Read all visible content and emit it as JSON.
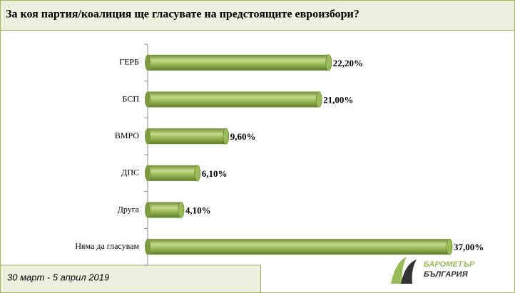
{
  "chart_data": {
    "type": "bar",
    "orientation": "horizontal",
    "title": "За коя партия/коалиция ще гласувате на предстоящите евроизбори?",
    "categories": [
      "ГЕРБ",
      "БСП",
      "ВМРО",
      "ДПС",
      "Друга",
      "Няма да гласувам"
    ],
    "values": [
      22.2,
      21,
      9.6,
      6.1,
      4.1,
      37
    ],
    "value_labels": [
      "22,20%",
      "21,00%",
      "9,60%",
      "6,10%",
      "4,10%",
      "37,00%"
    ],
    "color": "#9bbb59",
    "footnote": "30 март - 5 април 2019",
    "logo": [
      "БАРОМЕТЪР",
      "БЪЛГАРИЯ"
    ]
  }
}
